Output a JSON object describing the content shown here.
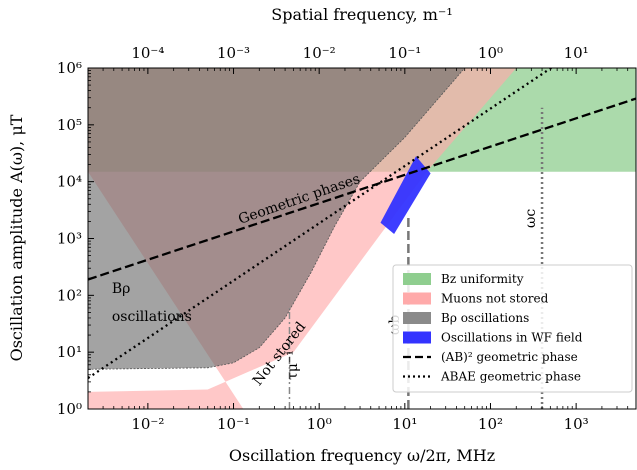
{
  "chart_data": {
    "type": "area",
    "title": "",
    "xlabel": "Oscillation frequency ω/2π, MHz",
    "ylabel": "Oscillation amplitude A(ω), μT",
    "x2label": "Spatial frequency, m⁻¹",
    "x_scale": "log",
    "y_scale": "log",
    "x2_scale": "log",
    "xlim": [
      0.002,
      5000
    ],
    "ylim": [
      1,
      1000000
    ],
    "x2lim": [
      2e-05,
      50
    ],
    "x_ticks": [
      {
        "value": 0.01,
        "label": "10⁻²"
      },
      {
        "value": 0.1,
        "label": "10⁻¹"
      },
      {
        "value": 1,
        "label": "10⁰"
      },
      {
        "value": 10,
        "label": "10¹"
      },
      {
        "value": 100,
        "label": "10²"
      },
      {
        "value": 1000,
        "label": "10³"
      }
    ],
    "y_ticks": [
      {
        "value": 1,
        "label": "10⁰"
      },
      {
        "value": 10,
        "label": "10¹"
      },
      {
        "value": 100,
        "label": "10²"
      },
      {
        "value": 1000,
        "label": "10³"
      },
      {
        "value": 10000,
        "label": "10⁴"
      },
      {
        "value": 100000,
        "label": "10⁵"
      },
      {
        "value": 1000000,
        "label": "10⁶"
      }
    ],
    "x2_ticks": [
      {
        "value": 0.0001,
        "label": "10⁻⁴"
      },
      {
        "value": 0.001,
        "label": "10⁻³"
      },
      {
        "value": 0.01,
        "label": "10⁻²"
      },
      {
        "value": 0.1,
        "label": "10⁻¹"
      },
      {
        "value": 1,
        "label": "10⁰"
      },
      {
        "value": 10,
        "label": "10¹"
      }
    ],
    "grid": false,
    "legend_position": "lower-right",
    "regions": [
      {
        "key": "bz",
        "name": "Bz uniformity",
        "color": "#8fce8f",
        "opacity": 0.75,
        "points": [
          [
            0.002,
            15000
          ],
          [
            5000,
            15000
          ],
          [
            5000,
            1000000
          ],
          [
            0.002,
            1000000
          ]
        ]
      },
      {
        "key": "muons",
        "name": "Muons not stored",
        "color": "#ffaaaa",
        "opacity": 0.65,
        "points": [
          [
            0.002,
            1
          ],
          [
            0.002,
            2
          ],
          [
            0.05,
            2.2
          ],
          [
            0.5,
            10
          ],
          [
            18,
            15000
          ],
          [
            200,
            1000000
          ],
          [
            0.002,
            1000000
          ],
          [
            0.002,
            15000
          ],
          [
            0.13,
            1
          ]
        ]
      },
      {
        "key": "brho",
        "name": "Bρ oscillations",
        "color": "#666666",
        "opacity": 0.6,
        "points": [
          [
            0.002,
            5
          ],
          [
            0.05,
            5.3
          ],
          [
            0.1,
            6.5
          ],
          [
            0.2,
            12
          ],
          [
            0.4,
            40
          ],
          [
            0.8,
            250
          ],
          [
            1.5,
            1600
          ],
          [
            3,
            10000
          ],
          [
            10,
            60000
          ],
          [
            50,
            1000000
          ],
          [
            0.002,
            1000000
          ]
        ]
      }
    ],
    "oscillations_band": {
      "name": "Oscillations in WF field",
      "color": "#3333ff",
      "opacity": 0.95,
      "points": [
        [
          5.2,
          1900
        ],
        [
          13.5,
          28000
        ],
        [
          20,
          14000
        ],
        [
          7.5,
          1200
        ]
      ]
    },
    "series": [
      {
        "name": "(AB)² geometric phase",
        "style": "dashed",
        "color": "#000000",
        "x": [
          0.002,
          5000
        ],
        "y": [
          190,
          290000
        ]
      },
      {
        "name": "ABAE geometric phase",
        "style": "dotted",
        "color": "#000000",
        "x": [
          0.002,
          5000
        ],
        "y": [
          3.5,
          10000000
        ]
      }
    ],
    "vlines": [
      {
        "key": "tau",
        "x": 0.45,
        "style": "dashdot",
        "color": "#888888",
        "y_from": 1,
        "y_to": 60,
        "label": "τμ⁻¹"
      },
      {
        "key": "omega_b",
        "x": 11,
        "style": "dashed",
        "color": "#777777",
        "y_from": 1,
        "y_to": 2500,
        "label": "ωb"
      },
      {
        "key": "omega_c",
        "x": 400,
        "style": "dotted",
        "color": "#777777",
        "y_from": 1,
        "y_to": 200000,
        "label": "ωc"
      }
    ],
    "annotations": [
      {
        "key": "geo",
        "text": "Geometric phases",
        "x": 0.12,
        "y": 1800,
        "rotate": -19
      },
      {
        "key": "brho1",
        "text": "Bρ",
        "x": 0.0038,
        "y": 110,
        "rotate": 0
      },
      {
        "key": "brho2",
        "text": "oscillations",
        "x": 0.0038,
        "y": 35,
        "rotate": 0
      },
      {
        "key": "notstored",
        "text": "Not stored",
        "x": 0.2,
        "y": 2.5,
        "rotate": -52
      }
    ],
    "legend": [
      {
        "key": "bz",
        "type": "patch",
        "label": "Bz uniformity",
        "color": "#8fce8f"
      },
      {
        "key": "muons",
        "type": "patch",
        "label": "Muons not stored",
        "color": "#ffaaaa"
      },
      {
        "key": "brho",
        "type": "patch",
        "label": "Bρ oscillations",
        "color": "#8a8a8a"
      },
      {
        "key": "wf",
        "type": "patch",
        "label": "Oscillations in WF field",
        "color": "#3333ff"
      },
      {
        "key": "ab2",
        "type": "dashed",
        "label": "(AB)² geometric phase",
        "color": "#000000"
      },
      {
        "key": "abae",
        "type": "dotted",
        "label": "ABAE geometric phase",
        "color": "#000000"
      }
    ]
  }
}
